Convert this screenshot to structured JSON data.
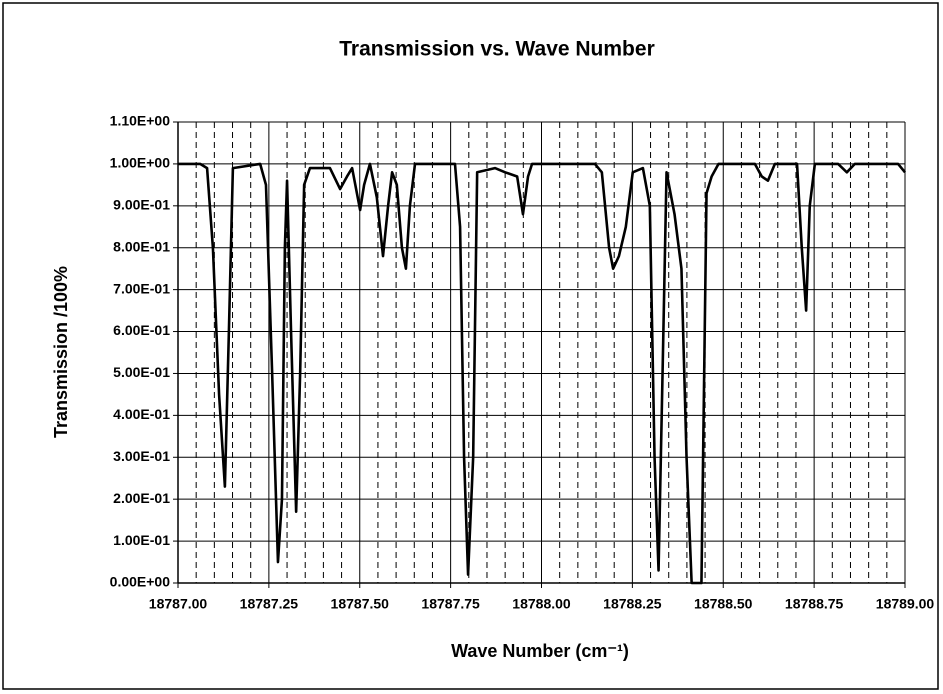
{
  "chart_data": {
    "type": "line",
    "title": "Transmission vs. Wave Number",
    "xlabel": "Wave Number (cm⁻¹)",
    "ylabel": "Transmission /100%",
    "color": "#000000",
    "grid": true,
    "xlim": [
      18787.0,
      18789.0
    ],
    "ylim": [
      0,
      1.1
    ],
    "xticks": [
      {
        "value": 18787.0,
        "label": "18787.00"
      },
      {
        "value": 18787.25,
        "label": "18787.25"
      },
      {
        "value": 18787.5,
        "label": "18787.50"
      },
      {
        "value": 18787.75,
        "label": "18787.75"
      },
      {
        "value": 18788.0,
        "label": "18788.00"
      },
      {
        "value": 18788.25,
        "label": "18788.25"
      },
      {
        "value": 18788.5,
        "label": "18788.50"
      },
      {
        "value": 18788.75,
        "label": "18788.75"
      },
      {
        "value": 18789.0,
        "label": "18789.00"
      }
    ],
    "xminorticks": [
      18787.05,
      18787.1,
      18787.15,
      18787.2,
      18787.3,
      18787.35,
      18787.4,
      18787.45,
      18787.55,
      18787.6,
      18787.65,
      18787.7,
      18787.8,
      18787.85,
      18787.9,
      18787.95,
      18788.05,
      18788.1,
      18788.15,
      18788.2,
      18788.3,
      18788.35,
      18788.4,
      18788.45,
      18788.55,
      18788.6,
      18788.65,
      18788.7,
      18788.8,
      18788.85,
      18788.9,
      18788.95
    ],
    "yticks": [
      {
        "value": 0,
        "label": "0.00E+00"
      },
      {
        "value": 0.1,
        "label": "1.00E-01"
      },
      {
        "value": 0.2,
        "label": "2.00E-01"
      },
      {
        "value": 0.3,
        "label": "3.00E-01"
      },
      {
        "value": 0.4,
        "label": "4.00E-01"
      },
      {
        "value": 0.5,
        "label": "5.00E-01"
      },
      {
        "value": 0.6,
        "label": "6.00E-01"
      },
      {
        "value": 0.7,
        "label": "7.00E-01"
      },
      {
        "value": 0.8,
        "label": "8.00E-01"
      },
      {
        "value": 0.9,
        "label": "9.00E-01"
      },
      {
        "value": 1.0,
        "label": "1.00E+00"
      },
      {
        "value": 1.1,
        "label": "1.10E+00"
      }
    ],
    "x": [
      18787.0,
      18787.061,
      18787.08,
      18787.096,
      18787.113,
      18787.129,
      18787.14,
      18787.151,
      18787.226,
      18787.242,
      18787.259,
      18787.275,
      18787.286,
      18787.294,
      18787.3,
      18787.311,
      18787.325,
      18787.336,
      18787.347,
      18787.363,
      18787.418,
      18787.446,
      18787.465,
      18787.479,
      18787.501,
      18787.512,
      18787.528,
      18787.547,
      18787.564,
      18787.578,
      18787.589,
      18787.602,
      18787.616,
      18787.627,
      18787.638,
      18787.652,
      18787.762,
      18787.776,
      18787.787,
      18787.798,
      18787.812,
      18787.823,
      18787.872,
      18787.9,
      18787.933,
      18787.949,
      18787.963,
      18787.974,
      18788.147,
      18788.166,
      18788.186,
      18788.197,
      18788.213,
      18788.232,
      18788.251,
      18788.279,
      18788.298,
      18788.311,
      18788.322,
      18788.333,
      18788.344,
      18788.366,
      18788.385,
      18788.399,
      18788.413,
      18788.44,
      18788.454,
      18788.468,
      18788.487,
      18788.587,
      18788.606,
      18788.623,
      18788.642,
      18788.703,
      18788.716,
      18788.728,
      18788.738,
      18788.752,
      18788.816,
      18788.84,
      18788.862,
      18788.981,
      18789.0
    ],
    "series": [
      {
        "name": "Transmission",
        "color": "#000000",
        "values": [
          1.0,
          1.0,
          0.99,
          0.8,
          0.45,
          0.23,
          0.6,
          0.99,
          1.0,
          0.95,
          0.5,
          0.05,
          0.2,
          0.8,
          0.96,
          0.6,
          0.17,
          0.5,
          0.95,
          0.99,
          0.99,
          0.94,
          0.97,
          0.99,
          0.89,
          0.95,
          1.0,
          0.92,
          0.78,
          0.9,
          0.98,
          0.95,
          0.8,
          0.75,
          0.9,
          1.0,
          1.0,
          0.85,
          0.3,
          0.02,
          0.3,
          0.98,
          0.99,
          0.98,
          0.97,
          0.88,
          0.97,
          1.0,
          1.0,
          0.98,
          0.8,
          0.75,
          0.78,
          0.85,
          0.98,
          0.99,
          0.9,
          0.3,
          0.03,
          0.5,
          0.98,
          0.88,
          0.75,
          0.3,
          0.0,
          0.0,
          0.93,
          0.97,
          1.0,
          1.0,
          0.97,
          0.96,
          1.0,
          1.0,
          0.8,
          0.65,
          0.9,
          1.0,
          1.0,
          0.98,
          1.0,
          1.0,
          0.98
        ]
      }
    ]
  }
}
